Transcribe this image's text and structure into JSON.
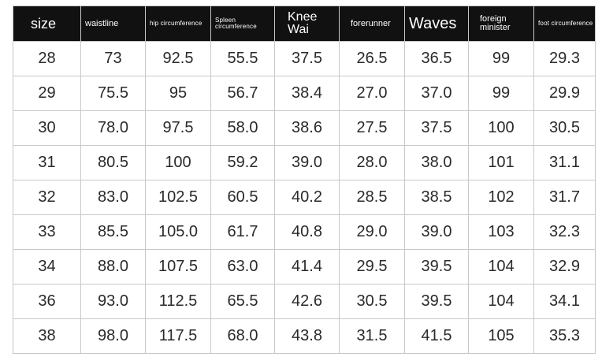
{
  "table": {
    "headers": [
      "size",
      "waistline",
      "hip circumference",
      "Spleen circumference",
      "Knee Wai",
      "forerunner",
      "Waves",
      "foreign minister",
      "foot circumference"
    ],
    "rows": [
      [
        "28",
        "73",
        "92.5",
        "55.5",
        "37.5",
        "26.5",
        "36.5",
        "99",
        "29.3"
      ],
      [
        "29",
        "75.5",
        "95",
        "56.7",
        "38.4",
        "27.0",
        "37.0",
        "99",
        "29.9"
      ],
      [
        "30",
        "78.0",
        "97.5",
        "58.0",
        "38.6",
        "27.5",
        "37.5",
        "100",
        "30.5"
      ],
      [
        "31",
        "80.5",
        "100",
        "59.2",
        "39.0",
        "28.0",
        "38.0",
        "101",
        "31.1"
      ],
      [
        "32",
        "83.0",
        "102.5",
        "60.5",
        "40.2",
        "28.5",
        "38.5",
        "102",
        "31.7"
      ],
      [
        "33",
        "85.5",
        "105.0",
        "61.7",
        "40.8",
        "29.0",
        "39.0",
        "103",
        "32.3"
      ],
      [
        "34",
        "88.0",
        "107.5",
        "63.0",
        "41.4",
        "29.5",
        "39.5",
        "104",
        "32.9"
      ],
      [
        "36",
        "93.0",
        "112.5",
        "65.5",
        "42.6",
        "30.5",
        "39.5",
        "104",
        "34.1"
      ],
      [
        "38",
        "98.0",
        "117.5",
        "68.0",
        "43.8",
        "31.5",
        "41.5",
        "105",
        "35.3"
      ]
    ]
  },
  "colors": {
    "header_bg": "#111111",
    "header_text": "#ffffff",
    "grid": "#c8c8c8",
    "cell_text": "#2a2a2a"
  }
}
